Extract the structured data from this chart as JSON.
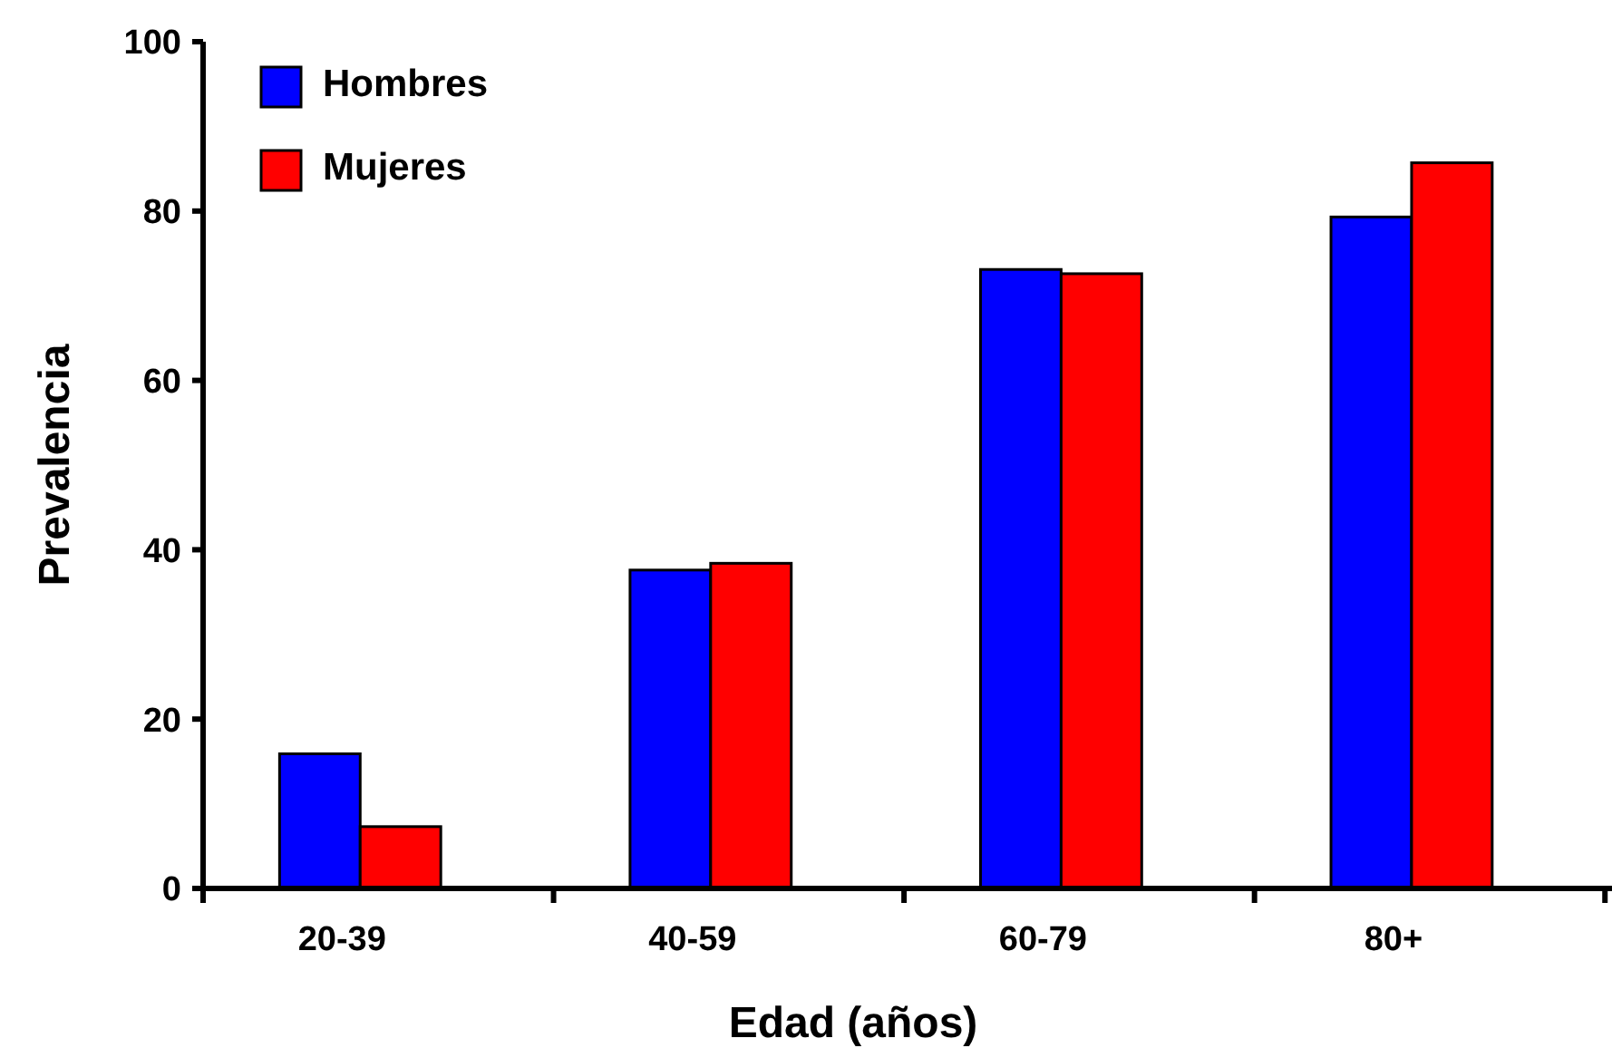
{
  "chart_data": {
    "type": "bar",
    "xlabel": "Edad (años)",
    "ylabel": "Prevalencia",
    "categories": [
      "20-39",
      "40-59",
      "60-79",
      "80+"
    ],
    "series": [
      {
        "name": "Hombres",
        "color": "#0000ff",
        "values": [
          15.9,
          37.6,
          73.1,
          79.3
        ]
      },
      {
        "name": "Mujeres",
        "color": "#ff0000",
        "values": [
          7.3,
          38.4,
          72.6,
          85.7
        ]
      }
    ],
    "ylim": [
      0,
      100
    ],
    "yticks": [
      0,
      20,
      40,
      60,
      80,
      100
    ],
    "grid": false,
    "legend": "top left"
  }
}
